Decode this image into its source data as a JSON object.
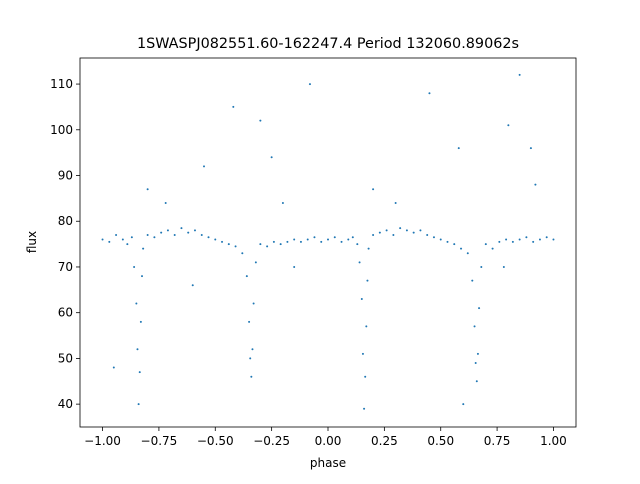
{
  "chart_data": {
    "type": "scatter",
    "title": "1SWASPJ082551.60-162247.4 Period 132060.89062s",
    "xlabel": "phase",
    "ylabel": "flux",
    "xlim": [
      -1.1,
      1.1
    ],
    "ylim": [
      35,
      115.7
    ],
    "xticks": [
      {
        "value": -1,
        "label": "−1.00"
      },
      {
        "value": -0.75,
        "label": "−0.75"
      },
      {
        "value": -0.5,
        "label": "−0.50"
      },
      {
        "value": -0.25,
        "label": "−0.25"
      },
      {
        "value": 0,
        "label": "0.00"
      },
      {
        "value": 0.25,
        "label": "0.25"
      },
      {
        "value": 0.5,
        "label": "0.50"
      },
      {
        "value": 0.75,
        "label": "0.75"
      },
      {
        "value": 1,
        "label": "1.00"
      }
    ],
    "yticks": [
      40,
      50,
      60,
      70,
      80,
      90,
      100,
      110
    ],
    "grid": false,
    "series": [
      {
        "color": "#1f77b4",
        "x": [
          -1.0,
          -0.97,
          -0.94,
          -0.91,
          -0.89,
          -0.87,
          -0.86,
          -0.85,
          -0.845,
          -0.84,
          -0.835,
          -0.83,
          -0.825,
          -0.82,
          -0.8,
          -0.77,
          -0.74,
          -0.71,
          -0.68,
          -0.65,
          -0.62,
          -0.59,
          -0.56,
          -0.53,
          -0.5,
          -0.47,
          -0.44,
          -0.41,
          -0.38,
          -0.36,
          -0.35,
          -0.345,
          -0.34,
          -0.335,
          -0.33,
          -0.32,
          -0.3,
          -0.27,
          -0.24,
          -0.21,
          -0.18,
          -0.15,
          -0.12,
          -0.09,
          -0.06,
          -0.03,
          -0.72,
          -0.55,
          -0.25,
          -0.08,
          -0.42,
          -0.6,
          -0.15,
          -0.95,
          -0.8,
          -0.2,
          -0.3,
          0.0,
          0.03,
          0.06,
          0.09,
          0.11,
          0.13,
          0.14,
          0.15,
          0.155,
          0.16,
          0.165,
          0.17,
          0.175,
          0.18,
          0.2,
          0.23,
          0.26,
          0.29,
          0.32,
          0.35,
          0.38,
          0.41,
          0.44,
          0.47,
          0.5,
          0.53,
          0.56,
          0.59,
          0.62,
          0.64,
          0.65,
          0.655,
          0.66,
          0.665,
          0.67,
          0.68,
          0.7,
          0.73,
          0.76,
          0.79,
          0.82,
          0.85,
          0.88,
          0.91,
          0.94,
          0.97,
          1.0,
          0.2,
          0.45,
          0.58,
          0.8,
          0.85,
          0.9,
          0.92,
          0.3,
          0.6,
          0.78
        ],
        "values": [
          76,
          75.5,
          77,
          76,
          75,
          76.5,
          70,
          62,
          52,
          40,
          47,
          58,
          68,
          74,
          77,
          76.5,
          77.5,
          78,
          77,
          78.5,
          77.5,
          78,
          77,
          76.5,
          76,
          75.5,
          75,
          74.5,
          73,
          68,
          58,
          50,
          46,
          52,
          62,
          71,
          75,
          74.5,
          75.5,
          75,
          75.5,
          76,
          75.5,
          76,
          76.5,
          75.5,
          84,
          92,
          94,
          110,
          105,
          66,
          70,
          48,
          87,
          84,
          102,
          76,
          76.5,
          75.5,
          76,
          76.5,
          75,
          71,
          63,
          51,
          39,
          46,
          57,
          67,
          74,
          77,
          77.5,
          78,
          77,
          78.5,
          78,
          77.5,
          78,
          77,
          76.5,
          76,
          75.5,
          75,
          74,
          73,
          67,
          57,
          49,
          45,
          51,
          61,
          70,
          75,
          74,
          75.5,
          76,
          75.5,
          76,
          76.5,
          75.5,
          76,
          76.5,
          76,
          87,
          108,
          96,
          101,
          112,
          96,
          88,
          84,
          40,
          70
        ]
      }
    ]
  }
}
